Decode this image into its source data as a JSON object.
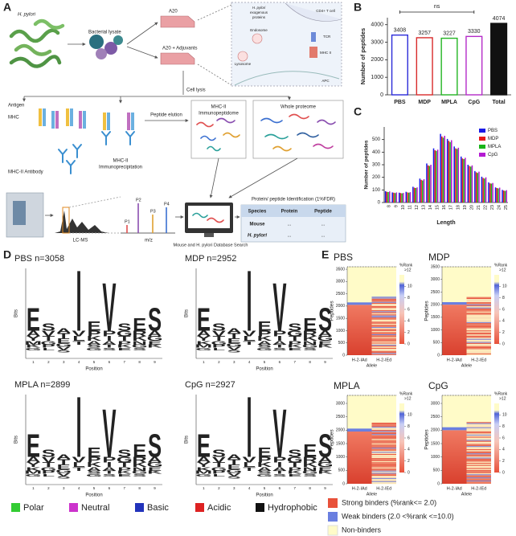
{
  "panel_labels": [
    "A",
    "B",
    "C",
    "D",
    "E"
  ],
  "diagram": {
    "h_pylori": "H. pylori",
    "lysate": "Bacterial lysate",
    "a20": "A20",
    "a20_adj": "A20 + Adjuvants",
    "cell_lysis": "Cell lysis",
    "antigen": "Antigen",
    "mhc": "MHC",
    "antibody": "MHC-II Antibody",
    "ip": [
      "MHC-II",
      "Immunoprecipitation"
    ],
    "elution": "Peptide elution",
    "immunopeptidome": [
      "MHC-II",
      "Immunopeptidome"
    ],
    "proteome": "Whole proteome",
    "lcms": "LC-MS",
    "mz": "m/z",
    "peaks": [
      "P1",
      "P2",
      "P3",
      "P4"
    ],
    "search": "Mouse and H. pylori Database Search",
    "identification": "Protein/ peptide Identification (1%FDR)",
    "table": {
      "header": [
        "Species",
        "Protein",
        "Peptide"
      ],
      "rows": [
        [
          "Mouse",
          "...",
          "..."
        ],
        [
          "H. pylori",
          "...",
          "..."
        ]
      ]
    },
    "inset": {
      "exogenous": [
        "H. pylori",
        "exogenous",
        "proteins"
      ],
      "endosome": "Endosome",
      "lysosome": "Lysosome",
      "t_cell": "CD4+ T cell",
      "tcr": "TCR",
      "mhc2": "MHC II",
      "apc": "APC"
    }
  },
  "chart_data": [
    {
      "type": "bar",
      "ylabel": "Number of peptides",
      "categories": [
        "PBS",
        "MDP",
        "MPLA",
        "CpG",
        "Total"
      ],
      "values": [
        3408,
        3257,
        3227,
        3330,
        4074
      ],
      "colors": [
        "#2b2bd8",
        "#d82b2b",
        "#22b422",
        "#b42bc8",
        "#111111"
      ],
      "ylim": [
        0,
        4400
      ],
      "yticks": [
        0,
        1000,
        2000,
        3000,
        4000
      ],
      "annotation": "ns"
    },
    {
      "type": "grouped_bar",
      "xlabel": "Length",
      "ylabel": "Number of peptides",
      "categories": [
        "8",
        "9",
        "10",
        "11",
        "12",
        "13",
        "14",
        "15",
        "16",
        "17",
        "18",
        "19",
        "20",
        "21",
        "22",
        "23",
        "24",
        "25"
      ],
      "series": [
        {
          "name": "PBS",
          "color": "#1a1ae6",
          "values": [
            90,
            80,
            78,
            85,
            125,
            190,
            310,
            430,
            545,
            505,
            445,
            365,
            300,
            250,
            205,
            160,
            120,
            100
          ]
        },
        {
          "name": "MDP",
          "color": "#e61a1a",
          "values": [
            85,
            78,
            75,
            80,
            118,
            180,
            295,
            415,
            525,
            490,
            430,
            350,
            290,
            240,
            195,
            152,
            115,
            95
          ]
        },
        {
          "name": "MPLA",
          "color": "#1ab41a",
          "values": [
            83,
            75,
            73,
            78,
            115,
            175,
            290,
            410,
            515,
            480,
            425,
            345,
            285,
            235,
            190,
            150,
            112,
            92
          ]
        },
        {
          "name": "CpG",
          "color": "#b41ad2",
          "values": [
            88,
            80,
            76,
            82,
            120,
            185,
            300,
            420,
            530,
            495,
            435,
            355,
            295,
            245,
            200,
            155,
            118,
            98
          ]
        }
      ],
      "ylim": [
        0,
        600
      ],
      "yticks": [
        0,
        100,
        200,
        300,
        400,
        500
      ],
      "legend": "upper right"
    }
  ],
  "logos": {
    "ylabel": "Bits",
    "xlabel": "Position",
    "positions": [
      1,
      2,
      3,
      4,
      5,
      6,
      7,
      8,
      9
    ],
    "panels": [
      {
        "title": "PBS n=3058",
        "columns": [
          "EAYMKG",
          "SVTGPL",
          "ATEGVS",
          "IVLT",
          "EPKASG",
          "VPIATS",
          "SGTPKE",
          "ERKNGS",
          "SAGEK"
        ]
      },
      {
        "title": "MDP n=2952",
        "columns": [
          "EAYKMG",
          "SVTGPL",
          "ATEGVS",
          "IVLT",
          "EPKASG",
          "VPIATS",
          "SGTPKE",
          "ERKNGS",
          "SAGEK"
        ]
      },
      {
        "title": "MPLA n=2899",
        "columns": [
          "EAYKMG",
          "SVTGPL",
          "ATEGVS",
          "IVLT",
          "EPKASG",
          "VPIATS",
          "SGTPKE",
          "ERKNGS",
          "SAGEK"
        ]
      },
      {
        "title": "CpG n=2927",
        "columns": [
          "EAYKMG",
          "SVTGPL",
          "ATEGVS",
          "IVLT",
          "EPKASG",
          "VPIATS",
          "SGTPKE",
          "ERKNGS",
          "SAGEK"
        ]
      }
    ]
  },
  "residue_legend": [
    {
      "name": "Polar",
      "color": "#33cc33"
    },
    {
      "name": "Neutral",
      "color": "#cc33cc"
    },
    {
      "name": "Basic",
      "color": "#2233bb"
    },
    {
      "name": "Acidic",
      "color": "#dd2222"
    },
    {
      "name": "Hydrophobic",
      "color": "#111111"
    }
  ],
  "heatmaps": {
    "ylabel": "Peptides",
    "xlabel": "Allele",
    "alleles": [
      "H-2-IAd",
      "H-2-IEd"
    ],
    "colorbar": {
      "label": "%Rank",
      "top_label": ">12",
      "lim": [
        0,
        12
      ],
      "ticks": [
        0,
        2,
        4,
        6,
        8,
        10
      ]
    },
    "panels": [
      {
        "title": "PBS",
        "ylim": [
          0,
          3600
        ],
        "yticks": [
          0,
          500,
          1000,
          1500,
          2000,
          2500,
          3000,
          3500
        ],
        "iad_strong": 2050,
        "iad_weak": 100,
        "ied_total": 2380
      },
      {
        "title": "MDP",
        "ylim": [
          0,
          3500
        ],
        "yticks": [
          0,
          500,
          1000,
          1500,
          2000,
          2500,
          3000,
          3500
        ],
        "iad_strong": 2000,
        "iad_weak": 100,
        "ied_total": 2300
      },
      {
        "title": "MPLA",
        "ylim": [
          0,
          3300
        ],
        "yticks": [
          0,
          500,
          1000,
          1500,
          2000,
          2500,
          3000
        ],
        "iad_strong": 1950,
        "iad_weak": 110,
        "ied_total": 2280
      },
      {
        "title": "CpG",
        "ylim": [
          0,
          3300
        ],
        "yticks": [
          0,
          500,
          1000,
          1500,
          2000,
          2500,
          3000
        ],
        "iad_strong": 2000,
        "iad_weak": 110,
        "ied_total": 2300
      }
    ]
  },
  "binder_legend": [
    {
      "name": "Strong binders (%rank<= 2.0)",
      "color": "#e8513a"
    },
    {
      "name": "Weak binders (2.0 <%rank <=10.0)",
      "color": "#6a7fe0"
    },
    {
      "name": "Non-binders",
      "color": "#fffbc8"
    }
  ]
}
